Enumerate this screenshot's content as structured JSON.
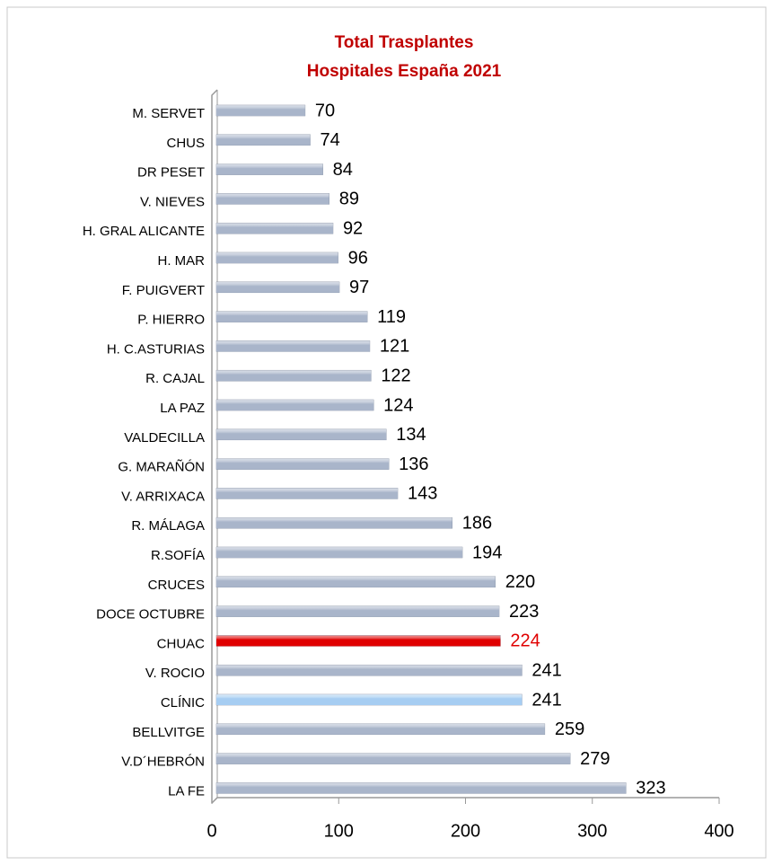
{
  "chart_data": {
    "type": "bar",
    "orientation": "horizontal",
    "title": "Total Trasplantes",
    "subtitle": "Hospitales España 2021",
    "title_color": "#c00000",
    "categories": [
      "M. SERVET",
      "CHUS",
      "DR PESET",
      "V. NIEVES",
      "H. GRAL ALICANTE",
      "H. MAR",
      "F. PUIGVERT",
      "P. HIERRO",
      "H. C.ASTURIAS",
      "R. CAJAL",
      "LA PAZ",
      "VALDECILLA",
      "G. MARAÑÓN",
      "V. ARRIXACA",
      "R. MÁLAGA",
      "R.SOFÍA",
      "CRUCES",
      "DOCE OCTUBRE",
      "CHUAC",
      "V. ROCIO",
      "CLÍNIC",
      "BELLVITGE",
      "V.D´HEBRÓN",
      "LA FE"
    ],
    "values": [
      70,
      74,
      84,
      89,
      92,
      96,
      97,
      119,
      121,
      122,
      124,
      134,
      136,
      143,
      186,
      194,
      220,
      223,
      224,
      241,
      241,
      259,
      279,
      323
    ],
    "colors": [
      "#a9b5ca",
      "#a9b5ca",
      "#a9b5ca",
      "#a9b5ca",
      "#a9b5ca",
      "#a9b5ca",
      "#a9b5ca",
      "#a9b5ca",
      "#a9b5ca",
      "#a9b5ca",
      "#a9b5ca",
      "#a9b5ca",
      "#a9b5ca",
      "#a9b5ca",
      "#a9b5ca",
      "#a9b5ca",
      "#a9b5ca",
      "#a9b5ca",
      "#e00000",
      "#a9b5ca",
      "#a6cdf2",
      "#a9b5ca",
      "#a9b5ca",
      "#a9b5ca"
    ],
    "label_colors": [
      "#000000",
      "#000000",
      "#000000",
      "#000000",
      "#000000",
      "#000000",
      "#000000",
      "#000000",
      "#000000",
      "#000000",
      "#000000",
      "#000000",
      "#000000",
      "#000000",
      "#000000",
      "#000000",
      "#000000",
      "#000000",
      "#e00000",
      "#000000",
      "#000000",
      "#000000",
      "#000000",
      "#000000"
    ],
    "xlim": [
      0,
      400
    ],
    "xticks": [
      0,
      100,
      200,
      300,
      400
    ]
  }
}
